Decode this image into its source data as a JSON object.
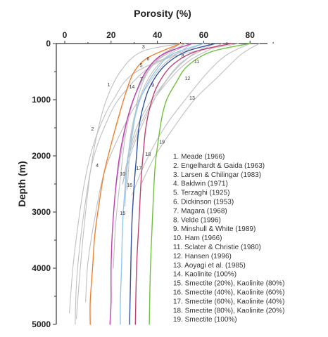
{
  "chart_data": {
    "type": "line",
    "xlabel": "Porosity (%)",
    "ylabel": "Depth (m)",
    "xlim": [
      0,
      90
    ],
    "ylim": [
      5000,
      0
    ],
    "xticks": [
      0,
      20,
      40,
      60,
      80
    ],
    "yticks": [
      0,
      1000,
      2000,
      3000,
      4000,
      5000
    ],
    "x_axis_position": "top",
    "grid": false,
    "legend_location": "lower-right",
    "series": [
      {
        "name": "1. Meade (1966)",
        "label": "1",
        "color": "#c0c0c0",
        "points": [
          [
            60,
            0
          ],
          [
            31,
            500
          ],
          [
            21,
            1000
          ],
          [
            15,
            1500
          ],
          [
            11,
            2000
          ],
          [
            8,
            2600
          ],
          [
            5.5,
            3300
          ],
          [
            3.5,
            4000
          ],
          [
            2,
            4800
          ]
        ]
      },
      {
        "name": "2. Engelhardt & Gaida (1963)",
        "label": "2",
        "color": "#c0c0c0",
        "points": [
          [
            75,
            0
          ],
          [
            42,
            300
          ],
          [
            25,
            900
          ],
          [
            17,
            1500
          ],
          [
            12,
            2100
          ],
          [
            9,
            2800
          ],
          [
            6.5,
            3600
          ],
          [
            5,
            4300
          ],
          [
            4.5,
            5000
          ]
        ]
      },
      {
        "name": "3. Larsen & Chilingar (1983)",
        "label": "3",
        "color": "#c0c0c0",
        "points": [
          [
            50,
            0
          ],
          [
            33,
            150
          ],
          [
            24,
            500
          ],
          [
            18,
            1000
          ],
          [
            14,
            1600
          ],
          [
            11,
            2300
          ],
          [
            8.5,
            3200
          ],
          [
            6.5,
            4100
          ],
          [
            5,
            4900
          ]
        ]
      },
      {
        "name": "4. Baldwin (1971)",
        "label": "4",
        "color": "#c0c0c0",
        "points": [
          [
            55,
            0
          ],
          [
            42,
            400
          ],
          [
            32,
            1000
          ],
          [
            24,
            1600
          ],
          [
            17,
            2300
          ],
          [
            13,
            3100
          ],
          [
            10,
            3900
          ],
          [
            9,
            4600
          ]
        ]
      },
      {
        "name": "5. Terzaghi (1925)",
        "label": "5",
        "color": "#c0c0c0",
        "points": [
          [
            52,
            0
          ],
          [
            40,
            300
          ],
          [
            34,
            600
          ],
          [
            29,
            1100
          ],
          [
            26,
            1700
          ],
          [
            24,
            2400
          ],
          [
            22,
            3200
          ],
          [
            21,
            4000
          ]
        ]
      },
      {
        "name": "6. Dickinson (1953)",
        "label": "6",
        "color": "#c0c0c0",
        "points": [
          [
            54,
            0
          ],
          [
            45,
            200
          ],
          [
            38,
            500
          ],
          [
            33,
            900
          ],
          [
            29,
            1500
          ],
          [
            27,
            2200
          ],
          [
            26,
            2900
          ]
        ]
      },
      {
        "name": "7. Magara (1968)",
        "label": "7",
        "color": "#c0c0c0",
        "points": [
          [
            50,
            0
          ],
          [
            42,
            200
          ],
          [
            36,
            500
          ],
          [
            32,
            900
          ],
          [
            30,
            1400
          ],
          [
            28,
            2000
          ],
          [
            27,
            2600
          ]
        ]
      },
      {
        "name": "8. Velde (1996)",
        "label": "8",
        "color": "#c0c0c0",
        "points": [
          [
            65,
            0
          ],
          [
            60,
            100
          ],
          [
            50,
            350
          ],
          [
            43,
            700
          ],
          [
            36,
            1100
          ],
          [
            31,
            1500
          ],
          [
            28,
            1900
          ]
        ]
      },
      {
        "name": "9. Minshull & White (1989)",
        "label": "9",
        "color": "#c0c0c0",
        "points": [
          [
            68,
            0
          ],
          [
            54,
            300
          ],
          [
            44,
            700
          ],
          [
            37,
            1100
          ],
          [
            31,
            1600
          ],
          [
            27,
            2100
          ],
          [
            25,
            2500
          ]
        ]
      },
      {
        "name": "10. Ham (1966)",
        "label": "10",
        "color": "#c0c0c0",
        "points": [
          [
            50,
            0
          ],
          [
            40,
            300
          ],
          [
            33,
            700
          ],
          [
            28,
            1200
          ],
          [
            25,
            1800
          ],
          [
            23,
            2300
          ],
          [
            22,
            2600
          ]
        ]
      },
      {
        "name": "11. Sclater & Christie (1980)",
        "label": "11",
        "color": "#c0c0c0",
        "points": [
          [
            63,
            0
          ],
          [
            55,
            200
          ],
          [
            47,
            500
          ],
          [
            40,
            900
          ],
          [
            34,
            1400
          ],
          [
            29,
            1900
          ],
          [
            25,
            2500
          ]
        ]
      },
      {
        "name": "12. Hansen (1996)",
        "label": "12",
        "color": "#c0c0c0",
        "points": [
          [
            80,
            0
          ],
          [
            70,
            200
          ],
          [
            62,
            500
          ],
          [
            52,
            1000
          ],
          [
            43,
            1500
          ],
          [
            35,
            2100
          ],
          [
            29,
            2700
          ]
        ]
      },
      {
        "name": "13. Aoyagi et al. (1985)",
        "label": "13",
        "color": "#c0c0c0",
        "points": [
          [
            84,
            0
          ],
          [
            76,
            200
          ],
          [
            66,
            600
          ],
          [
            56,
            1000
          ],
          [
            47,
            1500
          ],
          [
            39,
            2000
          ],
          [
            33,
            2500
          ]
        ]
      },
      {
        "name": "14. Kaolinite (100%)",
        "label": "14",
        "color": "#f08030",
        "points": [
          [
            50,
            0
          ],
          [
            36,
            250
          ],
          [
            30,
            500
          ],
          [
            27,
            800
          ],
          [
            24,
            1200
          ],
          [
            20,
            1800
          ],
          [
            17,
            2300
          ],
          [
            15,
            2800
          ],
          [
            13,
            3400
          ],
          [
            12,
            4000
          ],
          [
            11,
            4600
          ],
          [
            11,
            5000
          ]
        ]
      },
      {
        "name": "15. Smectite (20%), Kaolinite (80%)",
        "label": "15",
        "color": "#c040b0",
        "points": [
          [
            55,
            0
          ],
          [
            42,
            200
          ],
          [
            35,
            500
          ],
          [
            31,
            850
          ],
          [
            28,
            1200
          ],
          [
            25,
            1700
          ],
          [
            23,
            2200
          ],
          [
            21.5,
            2800
          ],
          [
            20.5,
            3400
          ],
          [
            20,
            4000
          ],
          [
            20,
            4600
          ],
          [
            19.5,
            5000
          ]
        ]
      },
      {
        "name": "16. Smectite (40%), Kaolinite (60%)",
        "label": "16",
        "color": "#90c8f0",
        "points": [
          [
            60,
            0
          ],
          [
            46,
            200
          ],
          [
            39,
            500
          ],
          [
            34,
            850
          ],
          [
            31,
            1200
          ],
          [
            29,
            1600
          ],
          [
            27,
            2100
          ],
          [
            26,
            2600
          ],
          [
            25,
            3200
          ],
          [
            24.5,
            4000
          ],
          [
            24,
            4600
          ],
          [
            24,
            5000
          ]
        ]
      },
      {
        "name": "17. Smectite (60%), Kaolinite (40%)",
        "label": "17",
        "color": "#3050a0",
        "points": [
          [
            65,
            0
          ],
          [
            52,
            150
          ],
          [
            43,
            400
          ],
          [
            37,
            750
          ],
          [
            34,
            1100
          ],
          [
            32,
            1500
          ],
          [
            31,
            2000
          ],
          [
            30,
            2500
          ],
          [
            29,
            3200
          ],
          [
            28.5,
            4000
          ],
          [
            28,
            5000
          ]
        ]
      },
      {
        "name": "18. Smectite (80%), Kaolinite (20%)",
        "label": "18",
        "color": "#c04070",
        "points": [
          [
            72,
            0
          ],
          [
            56,
            150
          ],
          [
            46,
            400
          ],
          [
            40,
            750
          ],
          [
            37,
            1100
          ],
          [
            35,
            1500
          ],
          [
            34,
            1900
          ],
          [
            33,
            2400
          ],
          [
            32,
            3200
          ],
          [
            31,
            4000
          ],
          [
            30.5,
            5000
          ]
        ]
      },
      {
        "name": "19. Smectite (100%)",
        "label": "19",
        "color": "#70c040",
        "points": [
          [
            80,
            0
          ],
          [
            63,
            150
          ],
          [
            53,
            400
          ],
          [
            48,
            700
          ],
          [
            44,
            1000
          ],
          [
            42,
            1300
          ],
          [
            40.5,
            1700
          ],
          [
            39,
            2200
          ],
          [
            38,
            3000
          ],
          [
            37,
            4000
          ],
          [
            36.5,
            5000
          ]
        ]
      }
    ],
    "curve_labels": [
      {
        "label": "1",
        "x": 19,
        "y": 760
      },
      {
        "label": "2",
        "x": 12,
        "y": 1550
      },
      {
        "label": "3",
        "x": 34,
        "y": 90
      },
      {
        "label": "4",
        "x": 14,
        "y": 2200
      },
      {
        "label": "5",
        "x": 33,
        "y": 420
      },
      {
        "label": "6",
        "x": 36,
        "y": 300
      },
      {
        "label": "7",
        "x": 33,
        "y": 660
      },
      {
        "label": "8",
        "x": 51,
        "y": 250
      },
      {
        "label": "9",
        "x": 38,
        "y": 770
      },
      {
        "label": "10",
        "x": 25,
        "y": 2350
      },
      {
        "label": "11",
        "x": 57,
        "y": 350
      },
      {
        "label": "12",
        "x": 53,
        "y": 650
      },
      {
        "label": "13",
        "x": 55,
        "y": 1000
      },
      {
        "label": "14",
        "x": 29,
        "y": 800
      },
      {
        "label": "15",
        "x": 25,
        "y": 3050
      },
      {
        "label": "16",
        "x": 28,
        "y": 2550
      },
      {
        "label": "17",
        "x": 32,
        "y": 2250
      },
      {
        "label": "18",
        "x": 36,
        "y": 2000
      },
      {
        "label": "19",
        "x": 42,
        "y": 1780
      }
    ]
  }
}
